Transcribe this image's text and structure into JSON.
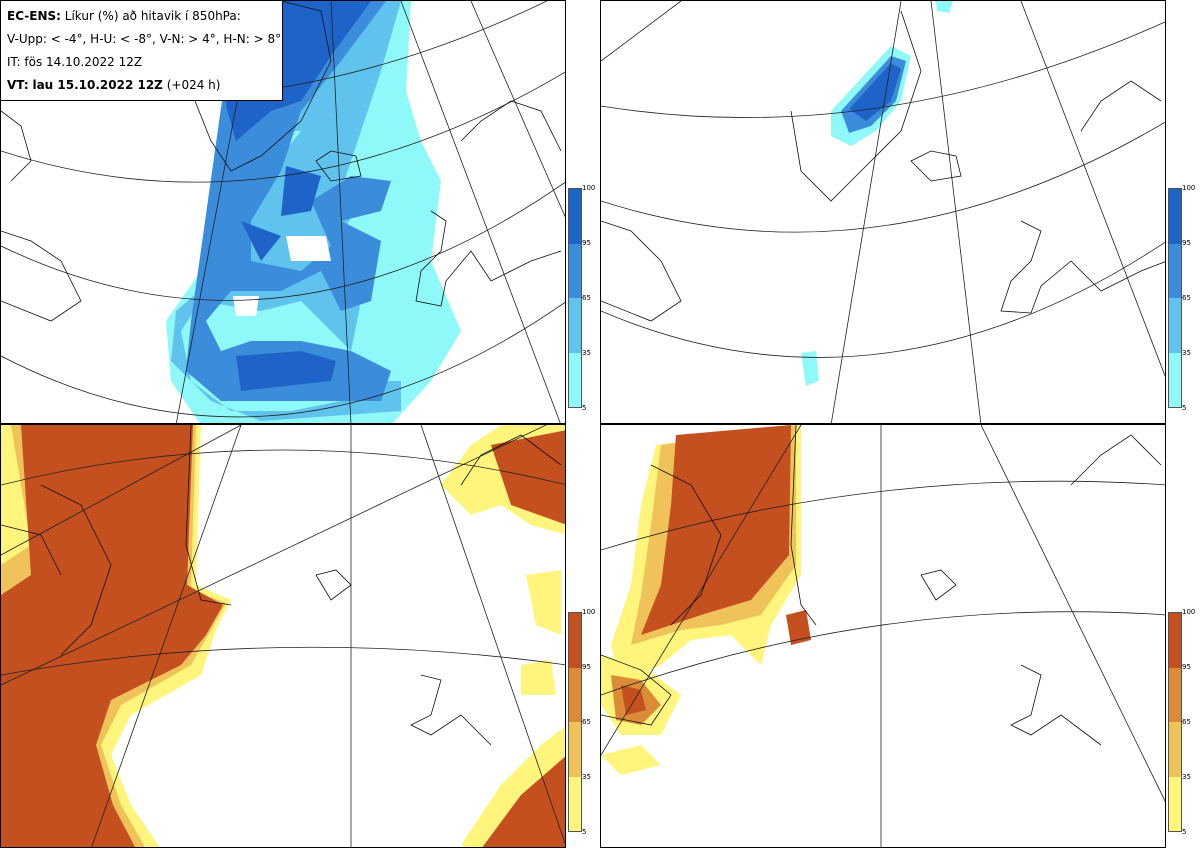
{
  "header": {
    "model": "EC-ENS:",
    "title": "Líkur (%) að hitavik í 850hPa:",
    "thresholds": "V-Upp: < -4°, H-U: < -8°, V-N: > 4°, H-N: > 8°",
    "issue_time": "IT: fös 14.10.2022 12Z",
    "valid_label": "VT:",
    "valid_time": "lau 15.10.2022 12Z",
    "lead": "(+024 h)"
  },
  "colorbar_top": {
    "ticks": [
      "100",
      "95",
      "65",
      "35",
      "5"
    ],
    "colors": [
      "#1e64c8",
      "#3c8cdc",
      "#5fc3ee",
      "#8ff8f8"
    ]
  },
  "colorbar_bottom": {
    "ticks": [
      "100",
      "95",
      "65",
      "35",
      "5"
    ],
    "colors": [
      "#c3501e",
      "#dc8c37",
      "#f0c35a",
      "#fff57d"
    ]
  }
}
